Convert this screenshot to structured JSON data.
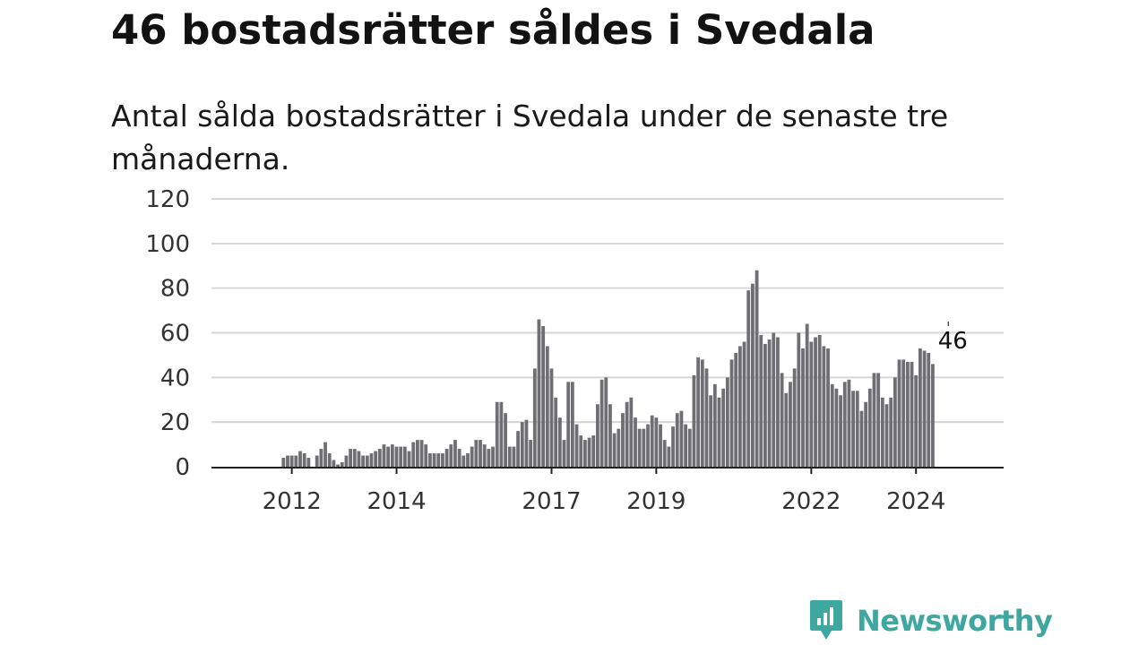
{
  "title": "46 bostadsrätter såldes i Svedala",
  "subtitle": "Antal sålda bostadsrätter i Svedala under de senaste tre månaderna.",
  "brand": {
    "name": "Newsworthy",
    "color": "#3ea8a0"
  },
  "chart_data": {
    "type": "bar",
    "ylim": [
      0,
      120
    ],
    "yticks": [
      0,
      20,
      40,
      60,
      80,
      100,
      120
    ],
    "xticks": [
      {
        "label": "2012",
        "index": 10
      },
      {
        "label": "2014",
        "index": 35
      },
      {
        "label": "2017",
        "index": 72
      },
      {
        "label": "2019",
        "index": 97
      },
      {
        "label": "2022",
        "index": 134
      },
      {
        "label": "2024",
        "index": 159
      }
    ],
    "grid": true,
    "bar_color": "#6f6e73",
    "highlight_color": "#1a9c94",
    "highlight_index": 168,
    "callout": {
      "label": "46",
      "index": 168
    },
    "values": [
      0,
      0,
      0,
      0,
      0,
      0,
      0,
      0,
      4,
      5,
      5,
      5,
      7,
      6,
      4,
      0,
      5,
      8,
      11,
      6,
      3,
      1,
      2,
      5,
      8,
      8,
      7,
      5,
      5,
      6,
      7,
      8,
      10,
      9,
      10,
      9,
      9,
      9,
      7,
      11,
      12,
      12,
      10,
      6,
      6,
      6,
      6,
      8,
      10,
      12,
      8,
      5,
      6,
      9,
      12,
      12,
      10,
      8,
      9,
      29,
      29,
      24,
      9,
      9,
      16,
      20,
      21,
      12,
      44,
      66,
      63,
      54,
      44,
      31,
      22,
      12,
      38,
      38,
      19,
      14,
      12,
      13,
      14,
      28,
      39,
      40,
      28,
      15,
      17,
      24,
      29,
      31,
      22,
      17,
      17,
      19,
      23,
      22,
      19,
      12,
      9,
      18,
      24,
      25,
      19,
      17,
      41,
      49,
      48,
      44,
      32,
      37,
      31,
      35,
      40,
      48,
      51,
      54,
      56,
      79,
      82,
      88,
      59,
      55,
      57,
      60,
      58,
      42,
      33,
      38,
      44,
      60,
      53,
      64,
      56,
      58,
      59,
      54,
      53,
      37,
      35,
      32,
      38,
      39,
      34,
      34,
      25,
      29,
      35,
      42,
      42,
      31,
      28,
      31,
      40,
      48,
      48,
      47,
      47,
      41,
      53,
      52,
      51,
      46
    ]
  }
}
